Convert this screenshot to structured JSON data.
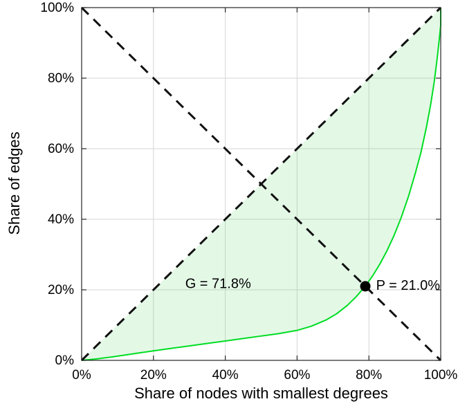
{
  "figure": {
    "background": "#ffffff"
  },
  "chart_data": {
    "type": "line",
    "title": "",
    "xlabel": "Share of nodes with smallest degrees",
    "ylabel": "Share of edges",
    "xlim": [
      0,
      100
    ],
    "ylim": [
      0,
      100
    ],
    "grid": true,
    "grid_color": "#d6d6d6",
    "axis_color": "#262626",
    "x_ticks": [
      0,
      20,
      40,
      60,
      80,
      100
    ],
    "x_tick_labels": [
      "0%",
      "20%",
      "40%",
      "60%",
      "80%",
      "100%"
    ],
    "y_ticks": [
      0,
      20,
      40,
      60,
      80,
      100
    ],
    "y_tick_labels": [
      "0%",
      "20%",
      "40%",
      "60%",
      "80%",
      "100%"
    ],
    "series": [
      {
        "name": "lorenz-curve",
        "type": "line",
        "color": "#00dd22",
        "x": [
          0,
          4,
          8,
          12,
          16,
          20,
          25,
          30,
          35,
          40,
          45,
          50,
          55,
          60,
          64,
          68,
          71,
          74,
          76.5,
          79,
          81,
          83,
          85,
          87,
          89,
          91,
          93,
          94.5,
          96,
          97.2,
          98.2,
          99,
          99.6,
          100,
          100
        ],
        "y": [
          0,
          0.4,
          0.9,
          1.5,
          2.1,
          2.7,
          3.4,
          4.1,
          4.8,
          5.5,
          6.2,
          6.9,
          7.6,
          8.5,
          9.7,
          11.4,
          13.2,
          15.6,
          18.1,
          21,
          23.9,
          27.2,
          31,
          35.4,
          40.5,
          46.4,
          53.3,
          59,
          66,
          72.5,
          79,
          85.5,
          91,
          95,
          100
        ]
      },
      {
        "name": "equality-diagonal",
        "type": "line",
        "style": "dashed",
        "color": "#111111",
        "x": [
          0,
          100
        ],
        "y": [
          0,
          100
        ]
      },
      {
        "name": "anti-diagonal",
        "type": "line",
        "style": "dashed",
        "color": "#111111",
        "x": [
          0,
          100
        ],
        "y": [
          100,
          0
        ]
      }
    ],
    "shaded_region": {
      "description": "area between equality diagonal and Lorenz curve",
      "fill": "rgba(40,210,60,0.13)"
    },
    "marker_point": {
      "x": 79,
      "y": 21,
      "color": "#000000",
      "radius": 7.5
    },
    "annotations": [
      {
        "id": "gini-label",
        "text": "G = 71.8%",
        "x": 38,
        "y": 21.5,
        "anchor": "middle"
      },
      {
        "id": "p-label",
        "text": "P = 21.0%",
        "x": 82,
        "y": 21,
        "anchor": "start"
      }
    ],
    "gini_coefficient": "71.8%",
    "intersection_share": "21.0%"
  }
}
